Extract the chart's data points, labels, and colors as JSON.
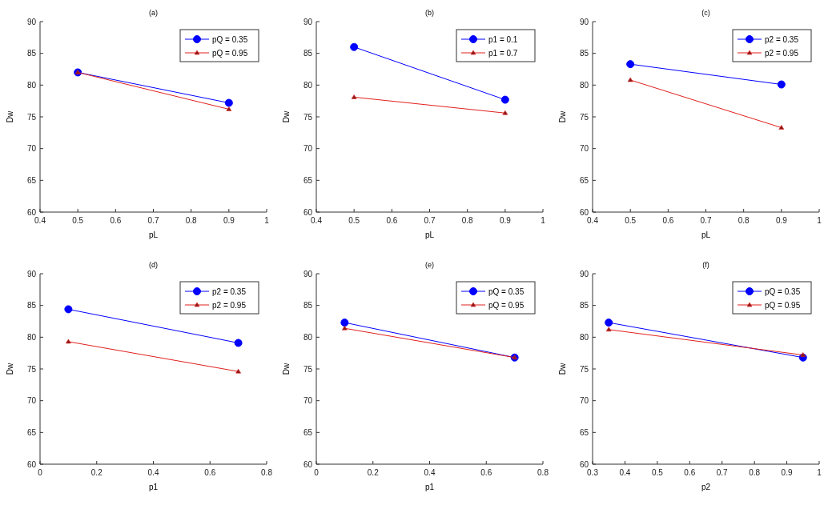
{
  "chart_data": [
    {
      "type": "line",
      "title": "(a)",
      "xlabel": "pL",
      "ylabel": "Dw",
      "xlim": [
        0.4,
        1
      ],
      "xticks": [
        0.4,
        0.5,
        0.6,
        0.7,
        0.8,
        0.9,
        1
      ],
      "ylim": [
        60,
        90
      ],
      "yticks": [
        60,
        65,
        70,
        75,
        80,
        85,
        90
      ],
      "grid": false,
      "legend": "top right",
      "x": [
        0.5,
        0.9
      ],
      "series": [
        {
          "name": "pQ = 0.35",
          "color": "#0000ff",
          "marker": "circle",
          "values": [
            82,
            77.2
          ]
        },
        {
          "name": "pQ = 0.95",
          "color": "#e0201c",
          "marker": "triangle",
          "values": [
            82,
            76.2
          ]
        }
      ]
    },
    {
      "type": "line",
      "title": "(b)",
      "xlabel": "pL",
      "ylabel": "Dw",
      "xlim": [
        0.4,
        1
      ],
      "xticks": [
        0.4,
        0.5,
        0.6,
        0.7,
        0.8,
        0.9,
        1
      ],
      "ylim": [
        60,
        90
      ],
      "yticks": [
        60,
        65,
        70,
        75,
        80,
        85,
        90
      ],
      "grid": false,
      "legend": "top right",
      "x": [
        0.5,
        0.9
      ],
      "series": [
        {
          "name": "p1 = 0.1",
          "color": "#0000ff",
          "marker": "circle",
          "values": [
            86,
            77.7
          ]
        },
        {
          "name": "p1 = 0.7",
          "color": "#e0201c",
          "marker": "triangle",
          "values": [
            78.1,
            75.6
          ]
        }
      ]
    },
    {
      "type": "line",
      "title": "(c)",
      "xlabel": "pL",
      "ylabel": "Dw",
      "xlim": [
        0.4,
        1
      ],
      "xticks": [
        0.4,
        0.5,
        0.6,
        0.7,
        0.8,
        0.9,
        1
      ],
      "ylim": [
        60,
        90
      ],
      "yticks": [
        60,
        65,
        70,
        75,
        80,
        85,
        90
      ],
      "grid": false,
      "legend": "top right",
      "x": [
        0.5,
        0.9
      ],
      "series": [
        {
          "name": "p2 = 0.35",
          "color": "#0000ff",
          "marker": "circle",
          "values": [
            83.3,
            80.1
          ]
        },
        {
          "name": "p2 = 0.95",
          "color": "#e0201c",
          "marker": "triangle",
          "values": [
            80.8,
            73.3
          ]
        }
      ]
    },
    {
      "type": "line",
      "title": "(d)",
      "xlabel": "p1",
      "ylabel": "Dw",
      "xlim": [
        0,
        0.8
      ],
      "xticks": [
        0,
        0.2,
        0.4,
        0.6,
        0.8
      ],
      "ylim": [
        60,
        90
      ],
      "yticks": [
        60,
        65,
        70,
        75,
        80,
        85,
        90
      ],
      "grid": false,
      "legend": "top right",
      "x": [
        0.1,
        0.7
      ],
      "series": [
        {
          "name": "p2 = 0.35",
          "color": "#0000ff",
          "marker": "circle",
          "values": [
            84.4,
            79.1
          ]
        },
        {
          "name": "p2 = 0.95",
          "color": "#e0201c",
          "marker": "triangle",
          "values": [
            79.3,
            74.6
          ]
        }
      ]
    },
    {
      "type": "line",
      "title": "(e)",
      "xlabel": "p1",
      "ylabel": "Dw",
      "xlim": [
        0,
        0.8
      ],
      "xticks": [
        0,
        0.2,
        0.4,
        0.6,
        0.8
      ],
      "ylim": [
        60,
        90
      ],
      "yticks": [
        60,
        65,
        70,
        75,
        80,
        85,
        90
      ],
      "grid": false,
      "legend": "top right",
      "x": [
        0.1,
        0.7
      ],
      "series": [
        {
          "name": "pQ = 0.35",
          "color": "#0000ff",
          "marker": "circle",
          "values": [
            82.3,
            76.8
          ]
        },
        {
          "name": "pQ = 0.95",
          "color": "#e0201c",
          "marker": "triangle",
          "values": [
            81.4,
            76.8
          ]
        }
      ]
    },
    {
      "type": "line",
      "title": "(f)",
      "xlabel": "p2",
      "ylabel": "Dw",
      "xlim": [
        0.3,
        1
      ],
      "xticks": [
        0.3,
        0.4,
        0.5,
        0.6,
        0.7,
        0.8,
        0.9,
        1
      ],
      "ylim": [
        60,
        90
      ],
      "yticks": [
        60,
        65,
        70,
        75,
        80,
        85,
        90
      ],
      "grid": false,
      "legend": "top right",
      "x": [
        0.35,
        0.95
      ],
      "series": [
        {
          "name": "pQ = 0.35",
          "color": "#0000ff",
          "marker": "circle",
          "values": [
            82.3,
            76.8
          ]
        },
        {
          "name": "pQ = 0.95",
          "color": "#e0201c",
          "marker": "triangle",
          "values": [
            81.2,
            77.2
          ]
        }
      ]
    }
  ]
}
